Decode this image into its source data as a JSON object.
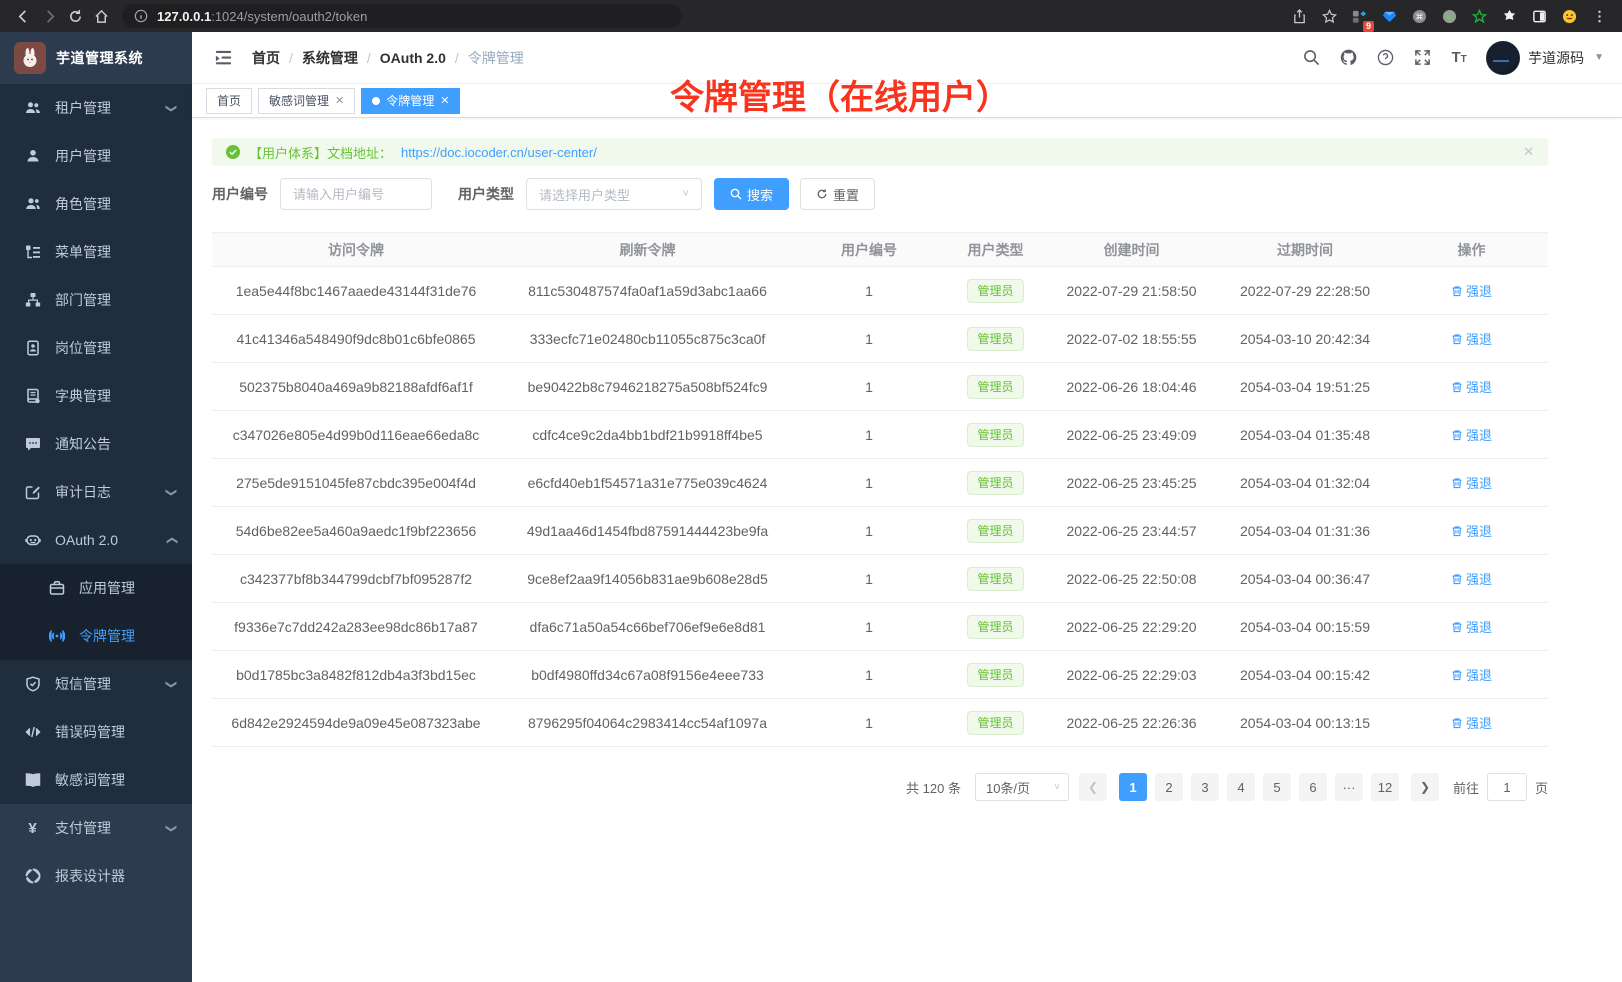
{
  "colors": {
    "primary": "#409eff",
    "success": "#67c23a",
    "annotation": "#f9341e"
  },
  "browser": {
    "url_host": "127.0.0.1",
    "url_rest": ":1024/system/oauth2/token",
    "extension_badge": "9"
  },
  "app": {
    "title": "芋道管理系统",
    "user_name": "芋道源码"
  },
  "breadcrumb": [
    "首页",
    "系统管理",
    "OAuth 2.0",
    "令牌管理"
  ],
  "tabs": [
    {
      "label": "首页",
      "closable": false,
      "active": false
    },
    {
      "label": "敏感词管理",
      "closable": true,
      "active": false
    },
    {
      "label": "令牌管理",
      "closable": true,
      "active": true
    }
  ],
  "annotation": "令牌管理（在线用户）",
  "sidebar": {
    "items": [
      {
        "label": "租户管理",
        "icon": "users-icon",
        "arrow": "down"
      },
      {
        "label": "用户管理",
        "icon": "user-icon"
      },
      {
        "label": "角色管理",
        "icon": "role-icon"
      },
      {
        "label": "菜单管理",
        "icon": "menu-tree-icon"
      },
      {
        "label": "部门管理",
        "icon": "org-icon"
      },
      {
        "label": "岗位管理",
        "icon": "badge-icon"
      },
      {
        "label": "字典管理",
        "icon": "dict-icon"
      },
      {
        "label": "通知公告",
        "icon": "message-icon"
      },
      {
        "label": "审计日志",
        "icon": "log-icon",
        "arrow": "down"
      },
      {
        "label": "OAuth 2.0",
        "icon": "robot-icon",
        "arrow": "up"
      },
      {
        "label": "应用管理",
        "icon": "app-icon",
        "sub": true
      },
      {
        "label": "令牌管理",
        "icon": "token-icon",
        "sub": true,
        "active": true
      },
      {
        "label": "短信管理",
        "icon": "shield-icon",
        "arrow": "down"
      },
      {
        "label": "错误码管理",
        "icon": "code-icon"
      },
      {
        "label": "敏感词管理",
        "icon": "book-icon"
      },
      {
        "label": "支付管理",
        "icon": "yen-icon",
        "arrow": "down",
        "light": true
      },
      {
        "label": "报表设计器",
        "icon": "report-icon",
        "light": true
      }
    ]
  },
  "alert": {
    "text": "【用户体系】文档地址：",
    "link": "https://doc.iocoder.cn/user-center/"
  },
  "filters": {
    "user_id_label": "用户编号",
    "user_id_placeholder": "请输入用户编号",
    "user_type_label": "用户类型",
    "user_type_placeholder": "请选择用户类型",
    "search_label": "搜索",
    "reset_label": "重置"
  },
  "table": {
    "columns": [
      "访问令牌",
      "刷新令牌",
      "用户编号",
      "用户类型",
      "创建时间",
      "过期时间",
      "操作"
    ],
    "tag_label": "管理员",
    "action_label": "强退",
    "rows": [
      {
        "access_token": "1ea5e44f8bc1467aaede43144f31de76",
        "refresh_token": "811c530487574fa0af1a59d3abc1aa66",
        "user_id": "1",
        "create_time": "2022-07-29 21:58:50",
        "expire_time": "2022-07-29 22:28:50"
      },
      {
        "access_token": "41c41346a548490f9dc8b01c6bfe0865",
        "refresh_token": "333ecfc71e02480cb11055c875c3ca0f",
        "user_id": "1",
        "create_time": "2022-07-02 18:55:55",
        "expire_time": "2054-03-10 20:42:34"
      },
      {
        "access_token": "502375b8040a469a9b82188afdf6af1f",
        "refresh_token": "be90422b8c7946218275a508bf524fc9",
        "user_id": "1",
        "create_time": "2022-06-26 18:04:46",
        "expire_time": "2054-03-04 19:51:25"
      },
      {
        "access_token": "c347026e805e4d99b0d116eae66eda8c",
        "refresh_token": "cdfc4ce9c2da4bb1bdf21b9918ff4be5",
        "user_id": "1",
        "create_time": "2022-06-25 23:49:09",
        "expire_time": "2054-03-04 01:35:48"
      },
      {
        "access_token": "275e5de9151045fe87cbdc395e004f4d",
        "refresh_token": "e6cfd40eb1f54571a31e775e039c4624",
        "user_id": "1",
        "create_time": "2022-06-25 23:45:25",
        "expire_time": "2054-03-04 01:32:04"
      },
      {
        "access_token": "54d6be82ee5a460a9aedc1f9bf223656",
        "refresh_token": "49d1aa46d1454fbd87591444423be9fa",
        "user_id": "1",
        "create_time": "2022-06-25 23:44:57",
        "expire_time": "2054-03-04 01:31:36"
      },
      {
        "access_token": "c342377bf8b344799dcbf7bf095287f2",
        "refresh_token": "9ce8ef2aa9f14056b831ae9b608e28d5",
        "user_id": "1",
        "create_time": "2022-06-25 22:50:08",
        "expire_time": "2054-03-04 00:36:47"
      },
      {
        "access_token": "f9336e7c7dd242a283ee98dc86b17a87",
        "refresh_token": "dfa6c71a50a54c66bef706ef9e6e8d81",
        "user_id": "1",
        "create_time": "2022-06-25 22:29:20",
        "expire_time": "2054-03-04 00:15:59"
      },
      {
        "access_token": "b0d1785bc3a8482f812db4a3f3bd15ec",
        "refresh_token": "b0df4980ffd34c67a08f9156e4eee733",
        "user_id": "1",
        "create_time": "2022-06-25 22:29:03",
        "expire_time": "2054-03-04 00:15:42"
      },
      {
        "access_token": "6d842e2924594de9a09e45e087323abe",
        "refresh_token": "8796295f04064c2983414cc54af1097a",
        "user_id": "1",
        "create_time": "2022-06-25 22:26:36",
        "expire_time": "2054-03-04 00:13:15"
      }
    ]
  },
  "pagination": {
    "total": "共 120 条",
    "page_size": "10条/页",
    "pages": [
      "1",
      "2",
      "3",
      "4",
      "5",
      "6",
      "···",
      "12"
    ],
    "active_page": "1",
    "goto_label": "前往",
    "goto_value": "1",
    "page_suffix": "页"
  }
}
